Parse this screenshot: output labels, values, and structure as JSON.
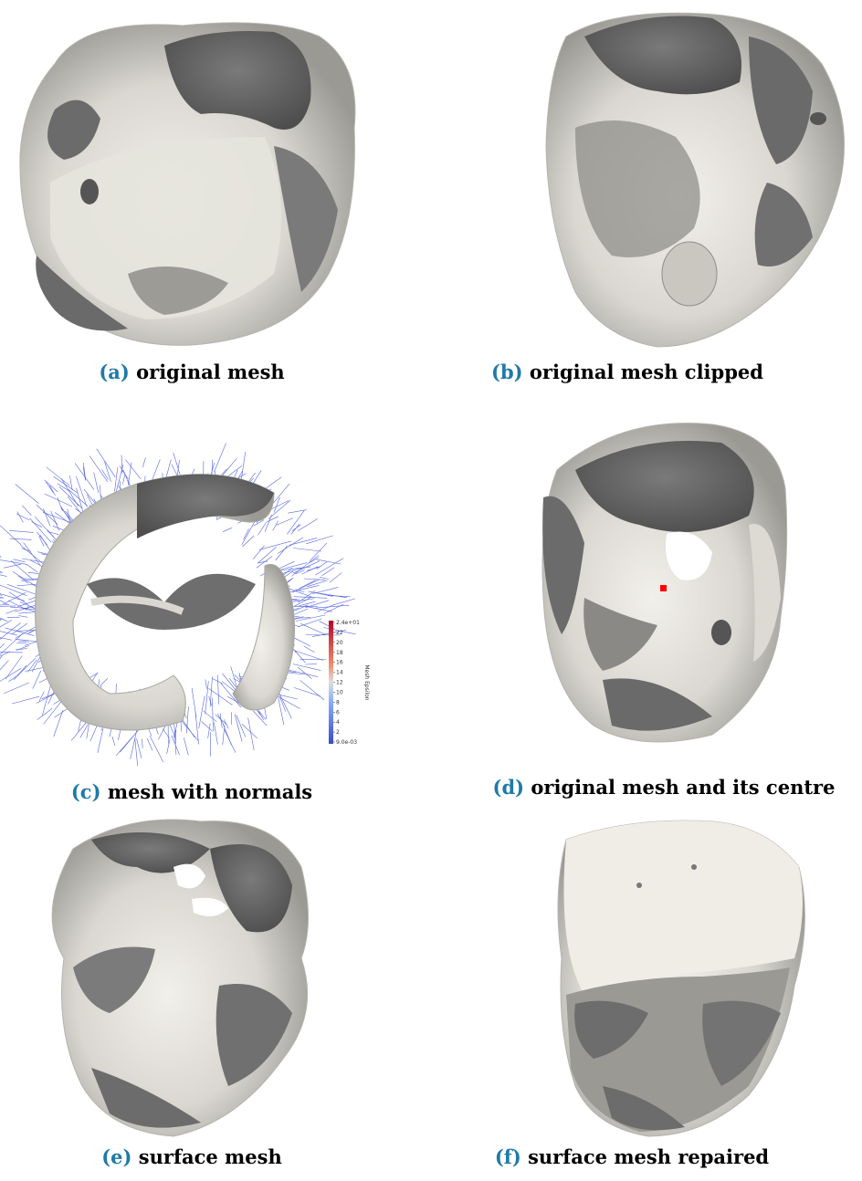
{
  "panels": [
    {
      "tag": "(a)",
      "caption": "original mesh"
    },
    {
      "tag": "(b)",
      "caption": "original mesh clipped"
    },
    {
      "tag": "(c)",
      "caption": "mesh with normals"
    },
    {
      "tag": "(d)",
      "caption": "original mesh and its centre"
    },
    {
      "tag": "(e)",
      "caption": "surface mesh"
    },
    {
      "tag": "(f)",
      "caption": "surface mesh repaired"
    }
  ],
  "colorbar": {
    "title": "Mesh Epsilon",
    "ticks": [
      "2.4e+01",
      "22",
      "20",
      "18",
      "16",
      "14",
      "12",
      "10",
      "8",
      "6",
      "4",
      "2",
      "9.0e-03"
    ]
  },
  "colors": {
    "mesh_light": "#e8e6df",
    "mesh_dark": "#5a5a5a",
    "normals": "#2b3fd6",
    "centre_marker": "#ff0000",
    "caption_tag": "#1f7aa8"
  }
}
